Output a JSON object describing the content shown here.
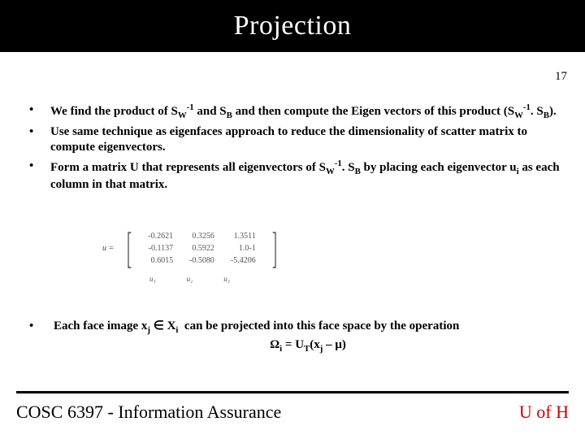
{
  "colors": {
    "title_bg": "#000000",
    "title_fg": "#ffffff",
    "body_fg": "#000000",
    "accent_red": "#cc0000",
    "matrix_fg": "#555555"
  },
  "title": "Projection",
  "page_number": "17",
  "bullets": [
    {
      "text_html": "We find the product of S<sub>W</sub><sup>-1</sup> and S<sub>B</sub> and then compute the Eigen vectors of this product (S<sub>W</sub><sup>-1</sup>. S<sub>B</sub>)."
    },
    {
      "text_html": "Use same technique as eigenfaces approach to reduce the dimensionality of scatter matrix to compute eigenvectors."
    },
    {
      "text_html": "Form a matrix U that represents all eigenvectors of S<sub>W</sub><sup>-1</sup>. S<sub>B</sub> by placing each eigenvector u<sub>i</sub> as each column in that matrix."
    }
  ],
  "matrix": {
    "lhs": "u =",
    "rows": [
      [
        "-0.2621",
        "0.3256",
        "1.3511"
      ],
      [
        "-0.1137",
        "0.5922",
        "1.0-1"
      ],
      [
        "0.6015",
        "-0.5080",
        "-5.4206"
      ]
    ],
    "col_labels": [
      "u₁",
      "u₂",
      "u₃"
    ]
  },
  "lower_bullet": {
    "line1_html": "Each face image x<sub>j</sub> ∈ X<sub>i</sub>&nbsp; can be projected into this face space by the operation",
    "line2_html": "Ω<sub>i</sub> = U<sub>T</sub>(x<sub>j</sub> – μ)"
  },
  "footer": {
    "left": "COSC 6397 - Information Assurance",
    "right": "U of H"
  }
}
